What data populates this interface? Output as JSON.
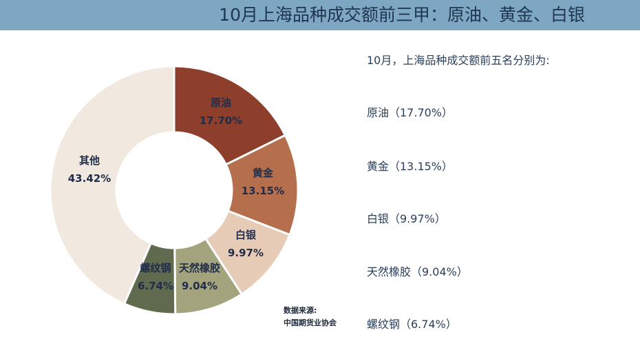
{
  "header": {
    "title": "10月上海品种成交额前三甲：原油、黄金、白银"
  },
  "summary": {
    "intro": "10月，上海品种成交额前五名分别为:",
    "items": [
      "原油（17.70%）",
      "黄金（13.15%）",
      "白银（9.97%）",
      "天然橡胶（9.04%）",
      "螺纹钢（6.74%）"
    ]
  },
  "source": {
    "line1": "数据来源:",
    "line2": "中国期货业协会"
  },
  "colors": {
    "title_bar": "#7ea7c4",
    "title_text": "#1f3550",
    "crude": "#8e3f2b",
    "gold": "#b56f4c",
    "silver": "#e6cbb7",
    "rubber": "#a3a37e",
    "rebar": "#5f6a4e",
    "others": "#f1e8df"
  },
  "chart_data": {
    "type": "pie",
    "variant": "donut",
    "title": "",
    "slices": [
      {
        "name": "原油",
        "value": 17.7,
        "label": "17.70%",
        "color": "#8e3f2b",
        "text_color": "#1f2d4a"
      },
      {
        "name": "黄金",
        "value": 13.15,
        "label": "13.15%",
        "color": "#b56f4c",
        "text_color": "#1f2d4a"
      },
      {
        "name": "白银",
        "value": 9.97,
        "label": "9.97%",
        "color": "#e6cbb7",
        "text_color": "#1f2d4a"
      },
      {
        "name": "天然橡胶",
        "value": 9.04,
        "label": "9.04%",
        "color": "#a3a37e",
        "text_color": "#1f2d4a"
      },
      {
        "name": "螺纹钢",
        "value": 6.74,
        "label": "6.74%",
        "color": "#5f6a4e",
        "text_color": "#1f2d4a"
      },
      {
        "name": "其他",
        "value": 43.42,
        "label": "43.42%",
        "color": "#f1e8df",
        "text_color": "#1f2d4a"
      }
    ],
    "start_angle": "12 o'clock",
    "direction": "clockwise"
  }
}
